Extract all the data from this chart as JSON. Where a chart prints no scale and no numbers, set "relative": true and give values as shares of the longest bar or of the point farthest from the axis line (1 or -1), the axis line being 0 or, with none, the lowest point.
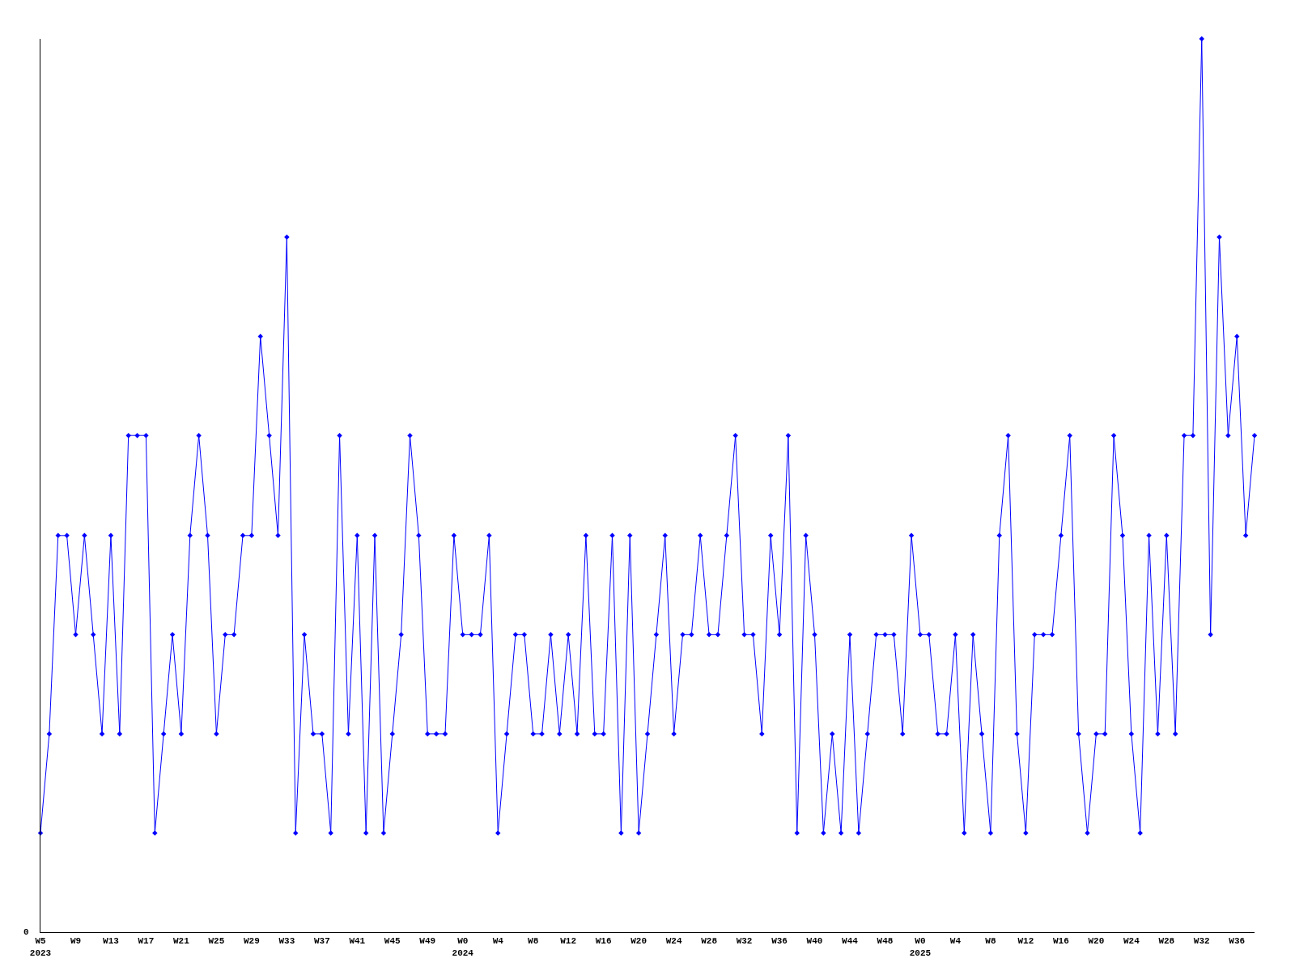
{
  "chart_data": {
    "type": "line",
    "relative": true,
    "marker": "diamond",
    "line_style": "solid",
    "annotations": [
      "0"
    ],
    "categories": [
      "W5\n2023",
      null,
      null,
      null,
      "W9",
      null,
      null,
      null,
      "W13",
      null,
      null,
      null,
      "W17",
      null,
      null,
      null,
      "W21",
      null,
      null,
      null,
      "W25",
      null,
      null,
      null,
      "W29",
      null,
      null,
      null,
      "W33",
      null,
      null,
      null,
      "W37",
      null,
      null,
      null,
      "W41",
      null,
      null,
      null,
      "W45",
      null,
      null,
      null,
      "W49",
      null,
      null,
      null,
      "W0\n2024",
      null,
      null,
      null,
      "W4",
      null,
      null,
      null,
      "W8",
      null,
      null,
      null,
      "W12",
      null,
      null,
      null,
      "W16",
      null,
      null,
      null,
      "W20",
      null,
      null,
      null,
      "W24",
      null,
      null,
      null,
      "W28",
      null,
      null,
      null,
      "W32",
      null,
      null,
      null,
      "W36",
      null,
      null,
      null,
      "W40",
      null,
      null,
      null,
      "W44",
      null,
      null,
      null,
      "W48",
      null,
      null,
      null,
      "W0\n2025",
      null,
      null,
      null,
      "W4",
      null,
      null,
      null,
      "W8",
      null,
      null,
      null,
      "W12",
      null,
      null,
      null,
      "W16",
      null,
      null,
      null,
      "W20",
      null,
      null,
      null,
      "W24",
      null,
      null,
      null,
      "W28",
      null,
      null,
      null,
      "W32",
      null,
      null,
      null,
      "W36",
      null,
      null
    ],
    "series": [
      {
        "color": "#0000ff",
        "values": [
          0.111,
          0.222,
          0.444,
          0.444,
          0.333,
          0.444,
          0.333,
          0.222,
          0.444,
          0.222,
          0.556,
          0.556,
          0.556,
          0.111,
          0.222,
          0.333,
          0.222,
          0.444,
          0.556,
          0.444,
          0.222,
          0.333,
          0.333,
          0.444,
          0.444,
          0.667,
          0.556,
          0.444,
          0.778,
          0.111,
          0.333,
          0.222,
          0.222,
          0.111,
          0.556,
          0.222,
          0.444,
          0.111,
          0.444,
          0.111,
          0.222,
          0.333,
          0.556,
          0.444,
          0.222,
          0.222,
          0.222,
          0.444,
          0.333,
          0.333,
          0.333,
          0.444,
          0.111,
          0.222,
          0.333,
          0.333,
          0.222,
          0.222,
          0.333,
          0.222,
          0.333,
          0.222,
          0.444,
          0.222,
          0.222,
          0.444,
          0.111,
          0.444,
          0.111,
          0.222,
          0.333,
          0.444,
          0.222,
          0.333,
          0.333,
          0.444,
          0.333,
          0.333,
          0.444,
          0.556,
          0.333,
          0.333,
          0.222,
          0.444,
          0.333,
          0.556,
          0.111,
          0.444,
          0.333,
          0.111,
          0.222,
          0.111,
          0.333,
          0.111,
          0.222,
          0.333,
          0.333,
          0.333,
          0.222,
          0.444,
          0.333,
          0.333,
          0.222,
          0.222,
          0.333,
          0.111,
          0.333,
          0.222,
          0.111,
          0.444,
          0.556,
          0.222,
          0.111,
          0.333,
          0.333,
          0.333,
          0.444,
          0.556,
          0.222,
          0.111,
          0.222,
          0.222,
          0.556,
          0.444,
          0.222,
          0.111,
          0.444,
          0.222,
          0.444,
          0.222,
          0.556,
          0.556,
          1,
          0.333,
          0.778,
          0.556,
          0.667,
          0.444,
          0.556
        ]
      }
    ]
  }
}
